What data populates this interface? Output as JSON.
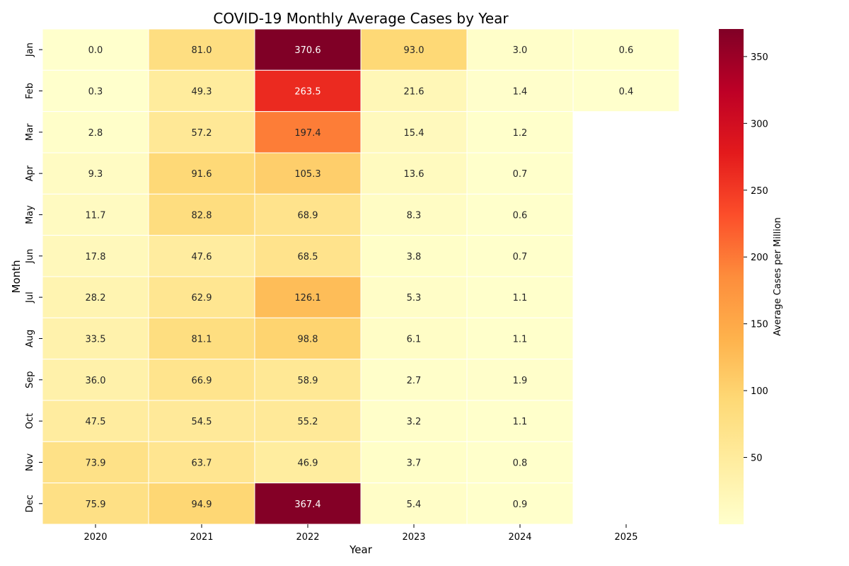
{
  "chart_data": {
    "type": "heatmap",
    "title": "COVID-19 Monthly Average Cases by Year",
    "xlabel": "Year",
    "ylabel": "Month",
    "colorbar_label": "Average Cases per Million",
    "x_categories": [
      "2020",
      "2021",
      "2022",
      "2023",
      "2024",
      "2025"
    ],
    "y_categories": [
      "Jan",
      "Feb",
      "Mar",
      "Apr",
      "May",
      "Jun",
      "Jul",
      "Aug",
      "Sep",
      "Oct",
      "Nov",
      "Dec"
    ],
    "values": [
      [
        0.0,
        81.0,
        370.6,
        93.0,
        3.0,
        0.6
      ],
      [
        0.3,
        49.3,
        263.5,
        21.6,
        1.4,
        0.4
      ],
      [
        2.8,
        57.2,
        197.4,
        15.4,
        1.2,
        null
      ],
      [
        9.3,
        91.6,
        105.3,
        13.6,
        0.7,
        null
      ],
      [
        11.7,
        82.8,
        68.9,
        8.3,
        0.6,
        null
      ],
      [
        17.8,
        47.6,
        68.5,
        3.8,
        0.7,
        null
      ],
      [
        28.2,
        62.9,
        126.1,
        5.3,
        1.1,
        null
      ],
      [
        33.5,
        81.1,
        98.8,
        6.1,
        1.1,
        null
      ],
      [
        36.0,
        66.9,
        58.9,
        2.7,
        1.9,
        null
      ],
      [
        47.5,
        54.5,
        55.2,
        3.2,
        1.1,
        null
      ],
      [
        73.9,
        63.7,
        46.9,
        3.7,
        0.8,
        null
      ],
      [
        75.9,
        94.9,
        367.4,
        5.4,
        0.9,
        null
      ]
    ],
    "colormap": "YlOrRd",
    "color_range": [
      0,
      370.6
    ],
    "colorbar_ticks": [
      50,
      100,
      150,
      200,
      250,
      300,
      350
    ],
    "grid": false
  }
}
